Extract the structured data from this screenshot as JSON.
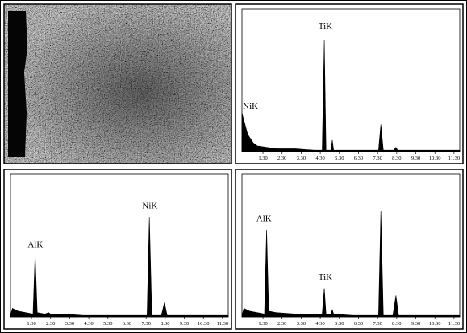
{
  "chart_data": [
    {
      "type": "area",
      "annotations": [
        "NiK",
        "TiK"
      ],
      "x": [
        0.2,
        0.3,
        0.5,
        0.8,
        1.0,
        1.5,
        2.0,
        3.0,
        4.0,
        4.4,
        4.51,
        4.6,
        4.85,
        4.93,
        5.0,
        5.5,
        6.5,
        7.35,
        7.47,
        7.6,
        8.15,
        8.26,
        8.35,
        9.0,
        10.0,
        11.6
      ],
      "series": [
        {
          "color": "#000000",
          "values": [
            27,
            22,
            12,
            6,
            4,
            3,
            2,
            2,
            1,
            1,
            78,
            1,
            1,
            8,
            1,
            1,
            1,
            1,
            19,
            1,
            1,
            3,
            1,
            1,
            1,
            1
          ]
        }
      ],
      "xlim": [
        0.2,
        11.6
      ],
      "xticks": [
        {
          "value": 1.3,
          "label": "1.30"
        },
        {
          "value": 2.3,
          "label": "2.30"
        },
        {
          "value": 3.3,
          "label": "3.30"
        },
        {
          "value": 4.3,
          "label": "4.30"
        },
        {
          "value": 5.3,
          "label": "5.30"
        },
        {
          "value": 6.3,
          "label": "6.30"
        },
        {
          "value": 7.3,
          "label": "7.30"
        },
        {
          "value": 8.3,
          "label": "8.30"
        },
        {
          "value": 9.3,
          "label": "9.30"
        },
        {
          "value": 10.3,
          "label": "10.30"
        },
        {
          "value": 11.3,
          "label": "11.30"
        }
      ],
      "ylim": [
        0,
        100
      ]
    },
    {
      "type": "area",
      "annotations": [
        "AlK",
        "NiK"
      ],
      "x": [
        0.2,
        0.3,
        0.6,
        1.0,
        1.38,
        1.49,
        1.6,
        2.0,
        2.2,
        2.3,
        2.4,
        3.0,
        4.0,
        5.0,
        6.0,
        7.35,
        7.47,
        7.6,
        8.1,
        8.26,
        8.4,
        9.0,
        10.0,
        11.6
      ],
      "series": [
        {
          "color": "#000000",
          "values": [
            1,
            6,
            4,
            3,
            2,
            44,
            3,
            2,
            3,
            2,
            2,
            2,
            1,
            1,
            1,
            1,
            70,
            1,
            1,
            10,
            1,
            1,
            1,
            1
          ]
        }
      ],
      "xlim": [
        0.2,
        11.6
      ],
      "xticks": [
        {
          "value": 1.3,
          "label": "1.30"
        },
        {
          "value": 2.3,
          "label": "2.30"
        },
        {
          "value": 3.3,
          "label": "3.30"
        },
        {
          "value": 4.3,
          "label": "4.30"
        },
        {
          "value": 5.3,
          "label": "5.30"
        },
        {
          "value": 6.3,
          "label": "6.30"
        },
        {
          "value": 7.3,
          "label": "7.30"
        },
        {
          "value": 8.3,
          "label": "8.30"
        },
        {
          "value": 9.3,
          "label": "9.30"
        },
        {
          "value": 10.3,
          "label": "10.30"
        },
        {
          "value": 11.3,
          "label": "11.30"
        }
      ],
      "ylim": [
        0,
        100
      ]
    },
    {
      "type": "area",
      "annotations": [
        "AlK",
        "TiK"
      ],
      "x": [
        0.2,
        0.3,
        0.6,
        1.0,
        1.38,
        1.49,
        1.6,
        2.0,
        3.0,
        4.0,
        4.4,
        4.51,
        4.6,
        4.85,
        4.93,
        5.0,
        6.0,
        7.35,
        7.47,
        7.6,
        8.1,
        8.26,
        8.4,
        9.0,
        10.0,
        11.6
      ],
      "series": [
        {
          "color": "#000000",
          "values": [
            1,
            6,
            4,
            3,
            2,
            61,
            4,
            3,
            2,
            2,
            2,
            20,
            2,
            2,
            5,
            2,
            1,
            1,
            74,
            1,
            1,
            15,
            1,
            1,
            1,
            1
          ]
        }
      ],
      "xlim": [
        0.2,
        11.6
      ],
      "xticks": [
        {
          "value": 1.3,
          "label": "1.30"
        },
        {
          "value": 2.3,
          "label": "2.30"
        },
        {
          "value": 3.3,
          "label": "3.30"
        },
        {
          "value": 4.3,
          "label": "4.30"
        },
        {
          "value": 5.3,
          "label": "5.30"
        },
        {
          "value": 6.3,
          "label": "6.30"
        },
        {
          "value": 7.3,
          "label": "7.30"
        },
        {
          "value": 8.3,
          "label": "8.30"
        },
        {
          "value": 9.3,
          "label": "9.30"
        },
        {
          "value": 10.3,
          "label": "10.30"
        },
        {
          "value": 11.3,
          "label": "11.30"
        }
      ],
      "ylim": [
        0,
        100
      ]
    }
  ]
}
